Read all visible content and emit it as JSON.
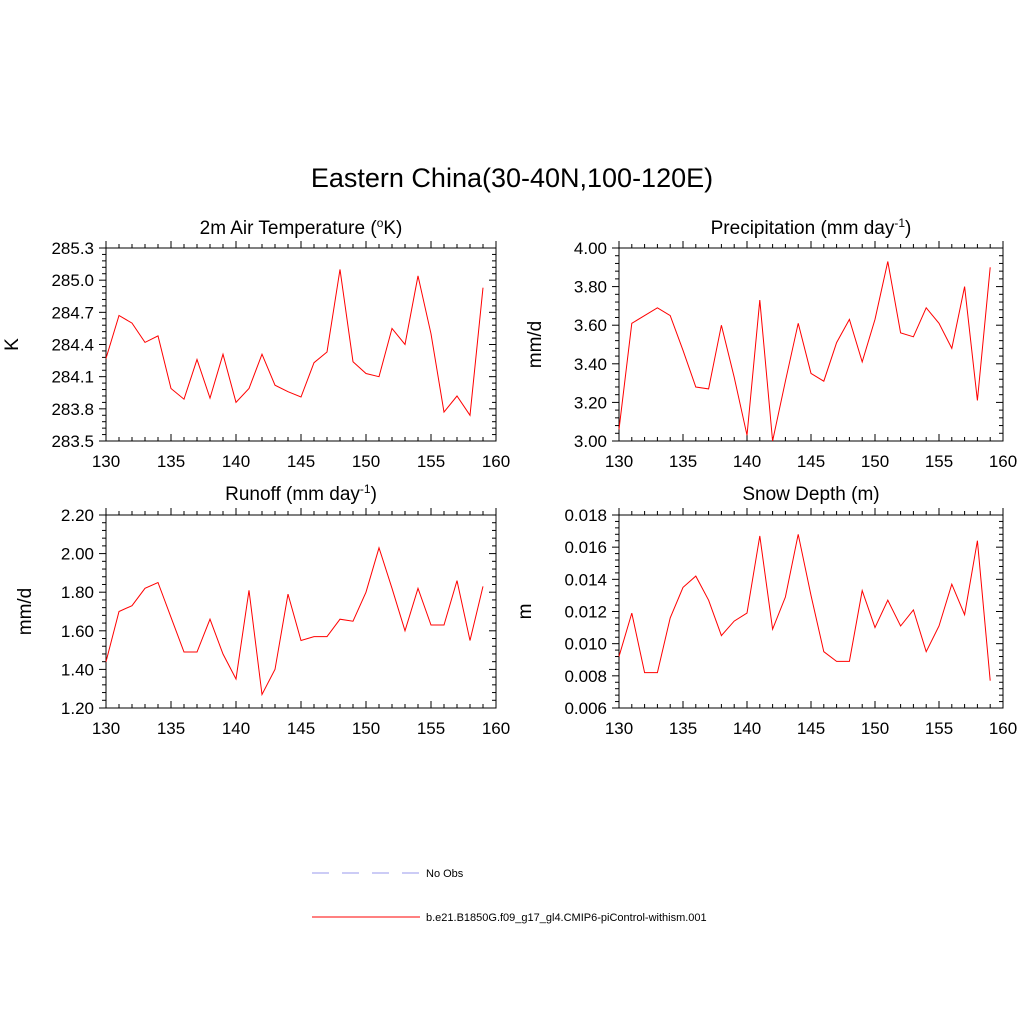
{
  "title": "Eastern China(30-40N,100-120E)",
  "chart_data": [
    {
      "type": "line",
      "title_main": "2m Air Temperature (",
      "title_sup1": "o",
      "title_rest": "K)",
      "title_sup2": "",
      "title_end": "",
      "ylabel": "K",
      "xlim": [
        130,
        160
      ],
      "xticks": [
        130,
        135,
        140,
        145,
        150,
        155,
        160
      ],
      "ylim": [
        283.5,
        285.3
      ],
      "yticks": [
        "283.5",
        "283.8",
        "284.1",
        "284.4",
        "284.7",
        "285.0",
        "285.3"
      ],
      "x": [
        130,
        131,
        132,
        133,
        134,
        135,
        136,
        137,
        138,
        139,
        140,
        141,
        142,
        143,
        144,
        145,
        146,
        147,
        148,
        149,
        150,
        151,
        152,
        153,
        154,
        155,
        156,
        157,
        158,
        159
      ],
      "series": [
        {
          "values": [
            284.27,
            284.67,
            284.6,
            284.42,
            284.48,
            283.99,
            283.89,
            284.26,
            283.9,
            284.31,
            283.86,
            283.99,
            284.31,
            284.02,
            283.96,
            283.91,
            284.23,
            284.33,
            285.1,
            284.24,
            284.13,
            284.1,
            284.55,
            284.4,
            285.04,
            284.5,
            283.77,
            283.92,
            283.74,
            284.93
          ]
        }
      ]
    },
    {
      "type": "line",
      "title_main": "Precipitation (mm day",
      "title_sup1": "-1",
      "title_rest": ")",
      "title_sup2": "",
      "title_end": "",
      "ylabel": "mm/d",
      "xlim": [
        130,
        160
      ],
      "xticks": [
        130,
        135,
        140,
        145,
        150,
        155,
        160
      ],
      "ylim": [
        3.0,
        4.0
      ],
      "yticks": [
        "3.00",
        "3.20",
        "3.40",
        "3.60",
        "3.80",
        "4.00"
      ],
      "x": [
        130,
        131,
        132,
        133,
        134,
        135,
        136,
        137,
        138,
        139,
        140,
        141,
        142,
        143,
        144,
        145,
        146,
        147,
        148,
        149,
        150,
        151,
        152,
        153,
        154,
        155,
        156,
        157,
        158,
        159
      ],
      "series": [
        {
          "values": [
            3.06,
            3.61,
            3.65,
            3.69,
            3.65,
            3.47,
            3.28,
            3.27,
            3.6,
            3.33,
            3.03,
            3.73,
            3.0,
            3.31,
            3.61,
            3.35,
            3.31,
            3.51,
            3.63,
            3.41,
            3.63,
            3.93,
            3.56,
            3.54,
            3.69,
            3.61,
            3.48,
            3.8,
            3.21,
            3.9
          ]
        }
      ]
    },
    {
      "type": "line",
      "title_main": "Runoff (mm day",
      "title_sup1": "-1",
      "title_rest": ")",
      "title_sup2": "",
      "title_end": "",
      "ylabel": "mm/d",
      "xlim": [
        130,
        160
      ],
      "xticks": [
        130,
        135,
        140,
        145,
        150,
        155,
        160
      ],
      "ylim": [
        1.2,
        2.2
      ],
      "yticks": [
        "1.20",
        "1.40",
        "1.60",
        "1.80",
        "2.00",
        "2.20"
      ],
      "x": [
        130,
        131,
        132,
        133,
        134,
        135,
        136,
        137,
        138,
        139,
        140,
        141,
        142,
        143,
        144,
        145,
        146,
        147,
        148,
        149,
        150,
        151,
        152,
        153,
        154,
        155,
        156,
        157,
        158,
        159
      ],
      "series": [
        {
          "values": [
            1.44,
            1.7,
            1.73,
            1.82,
            1.85,
            1.67,
            1.49,
            1.49,
            1.66,
            1.48,
            1.35,
            1.81,
            1.27,
            1.4,
            1.79,
            1.55,
            1.57,
            1.57,
            1.66,
            1.65,
            1.8,
            2.03,
            1.82,
            1.6,
            1.82,
            1.63,
            1.63,
            1.86,
            1.55,
            1.83
          ]
        }
      ]
    },
    {
      "type": "line",
      "title_main": "Snow Depth (m)",
      "title_sup1": "",
      "title_rest": "",
      "title_sup2": "",
      "title_end": "",
      "ylabel": "m",
      "xlim": [
        130,
        160
      ],
      "xticks": [
        130,
        135,
        140,
        145,
        150,
        155,
        160
      ],
      "ylim": [
        0.006,
        0.018
      ],
      "yticks": [
        "0.006",
        "0.008",
        "0.010",
        "0.012",
        "0.014",
        "0.016",
        "0.018"
      ],
      "x": [
        130,
        131,
        132,
        133,
        134,
        135,
        136,
        137,
        138,
        139,
        140,
        141,
        142,
        143,
        144,
        145,
        146,
        147,
        148,
        149,
        150,
        151,
        152,
        153,
        154,
        155,
        156,
        157,
        158,
        159
      ],
      "series": [
        {
          "values": [
            0.0092,
            0.0119,
            0.0082,
            0.0082,
            0.0116,
            0.0135,
            0.0142,
            0.0127,
            0.0105,
            0.0114,
            0.0119,
            0.0167,
            0.0109,
            0.0129,
            0.0168,
            0.013,
            0.0095,
            0.0089,
            0.0089,
            0.0133,
            0.011,
            0.0127,
            0.0111,
            0.0121,
            0.0095,
            0.0111,
            0.0137,
            0.0118,
            0.0164,
            0.0077
          ]
        }
      ]
    }
  ],
  "legend": {
    "entries": [
      {
        "label": "No Obs",
        "color": "#9999ee",
        "dash": true
      },
      {
        "label": "b.e21.B1850G.f09_g17_gl4.CMIP6-piControl-withism.001",
        "color": "#ff0000",
        "dash": false
      }
    ]
  },
  "colors": {
    "line": "#ff0000",
    "axis": "#000000"
  }
}
